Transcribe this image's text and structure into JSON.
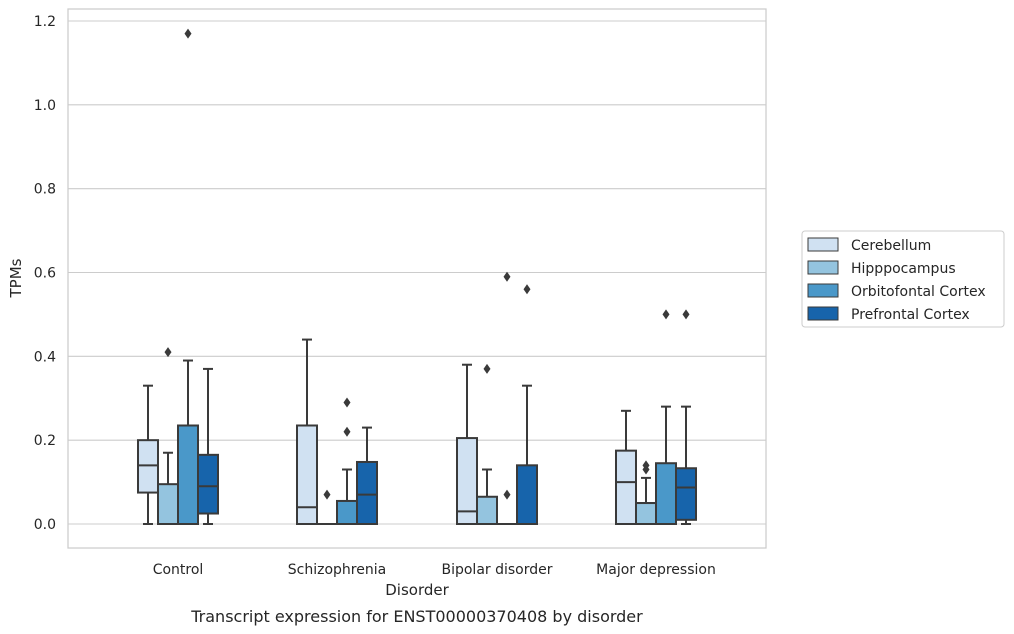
{
  "caption": "Transcript expression for ENST00000370408 by disorder",
  "chart_data": {
    "type": "box",
    "title": "",
    "xlabel": "Disorder",
    "ylabel": "TPMs",
    "ylim": [
      -0.057,
      1.23
    ],
    "yticks": [
      0.0,
      0.2,
      0.4,
      0.6,
      0.8,
      1.0,
      1.2
    ],
    "ytick_labels": [
      "0.0",
      "0.2",
      "0.4",
      "0.6",
      "0.8",
      "1.0",
      "1.2"
    ],
    "categories": [
      "Control",
      "Schizophrenia",
      "Bipolar disorder",
      "Major depression"
    ],
    "grid": "horizontal",
    "legend_position": "right",
    "series": [
      {
        "name": "Cerebellum",
        "color": "#d0e1f2",
        "boxes": [
          {
            "whislo": 0.0,
            "q1": 0.075,
            "med": 0.14,
            "q3": 0.2,
            "whishi": 0.33,
            "fliers": []
          },
          {
            "whislo": 0.0,
            "q1": 0.0,
            "med": 0.04,
            "q3": 0.235,
            "whishi": 0.44,
            "fliers": []
          },
          {
            "whislo": 0.0,
            "q1": 0.0,
            "med": 0.03,
            "q3": 0.205,
            "whishi": 0.38,
            "fliers": []
          },
          {
            "whislo": 0.0,
            "q1": 0.0,
            "med": 0.1,
            "q3": 0.175,
            "whishi": 0.27,
            "fliers": []
          }
        ]
      },
      {
        "name": "Hipppocampus",
        "color": "#94c4df",
        "boxes": [
          {
            "whislo": 0.0,
            "q1": 0.0,
            "med": 0.0,
            "q3": 0.095,
            "whishi": 0.17,
            "fliers": [
              0.41
            ]
          },
          {
            "whislo": 0.0,
            "q1": 0.0,
            "med": 0.0,
            "q3": 0.0,
            "whishi": 0.0,
            "fliers": [
              0.07
            ]
          },
          {
            "whislo": 0.0,
            "q1": 0.0,
            "med": 0.0,
            "q3": 0.065,
            "whishi": 0.13,
            "fliers": [
              0.37
            ]
          },
          {
            "whislo": 0.0,
            "q1": 0.0,
            "med": 0.05,
            "q3": 0.05,
            "whishi": 0.11,
            "fliers": [
              0.13,
              0.14
            ]
          }
        ]
      },
      {
        "name": "Orbitofontal Cortex",
        "color": "#4a98c9",
        "boxes": [
          {
            "whislo": 0.0,
            "q1": 0.0,
            "med": 0.0,
            "q3": 0.235,
            "whishi": 0.39,
            "fliers": [
              1.17
            ]
          },
          {
            "whislo": 0.0,
            "q1": 0.0,
            "med": 0.0,
            "q3": 0.055,
            "whishi": 0.13,
            "fliers": [
              0.22,
              0.29
            ]
          },
          {
            "whislo": 0.0,
            "q1": 0.0,
            "med": 0.0,
            "q3": 0.0,
            "whishi": 0.0,
            "fliers": [
              0.07,
              0.59
            ]
          },
          {
            "whislo": 0.0,
            "q1": 0.0,
            "med": 0.0,
            "q3": 0.145,
            "whishi": 0.28,
            "fliers": [
              0.5
            ]
          }
        ]
      },
      {
        "name": "Prefrontal Cortex",
        "color": "#1764ab",
        "boxes": [
          {
            "whislo": 0.0,
            "q1": 0.025,
            "med": 0.09,
            "q3": 0.165,
            "whishi": 0.37,
            "fliers": []
          },
          {
            "whislo": 0.0,
            "q1": 0.0,
            "med": 0.07,
            "q3": 0.148,
            "whishi": 0.23,
            "fliers": []
          },
          {
            "whislo": 0.0,
            "q1": 0.0,
            "med": 0.0,
            "q3": 0.14,
            "whishi": 0.33,
            "fliers": [
              0.56
            ]
          },
          {
            "whislo": 0.0,
            "q1": 0.01,
            "med": 0.087,
            "q3": 0.133,
            "whishi": 0.28,
            "fliers": [
              0.5
            ]
          }
        ]
      }
    ]
  }
}
